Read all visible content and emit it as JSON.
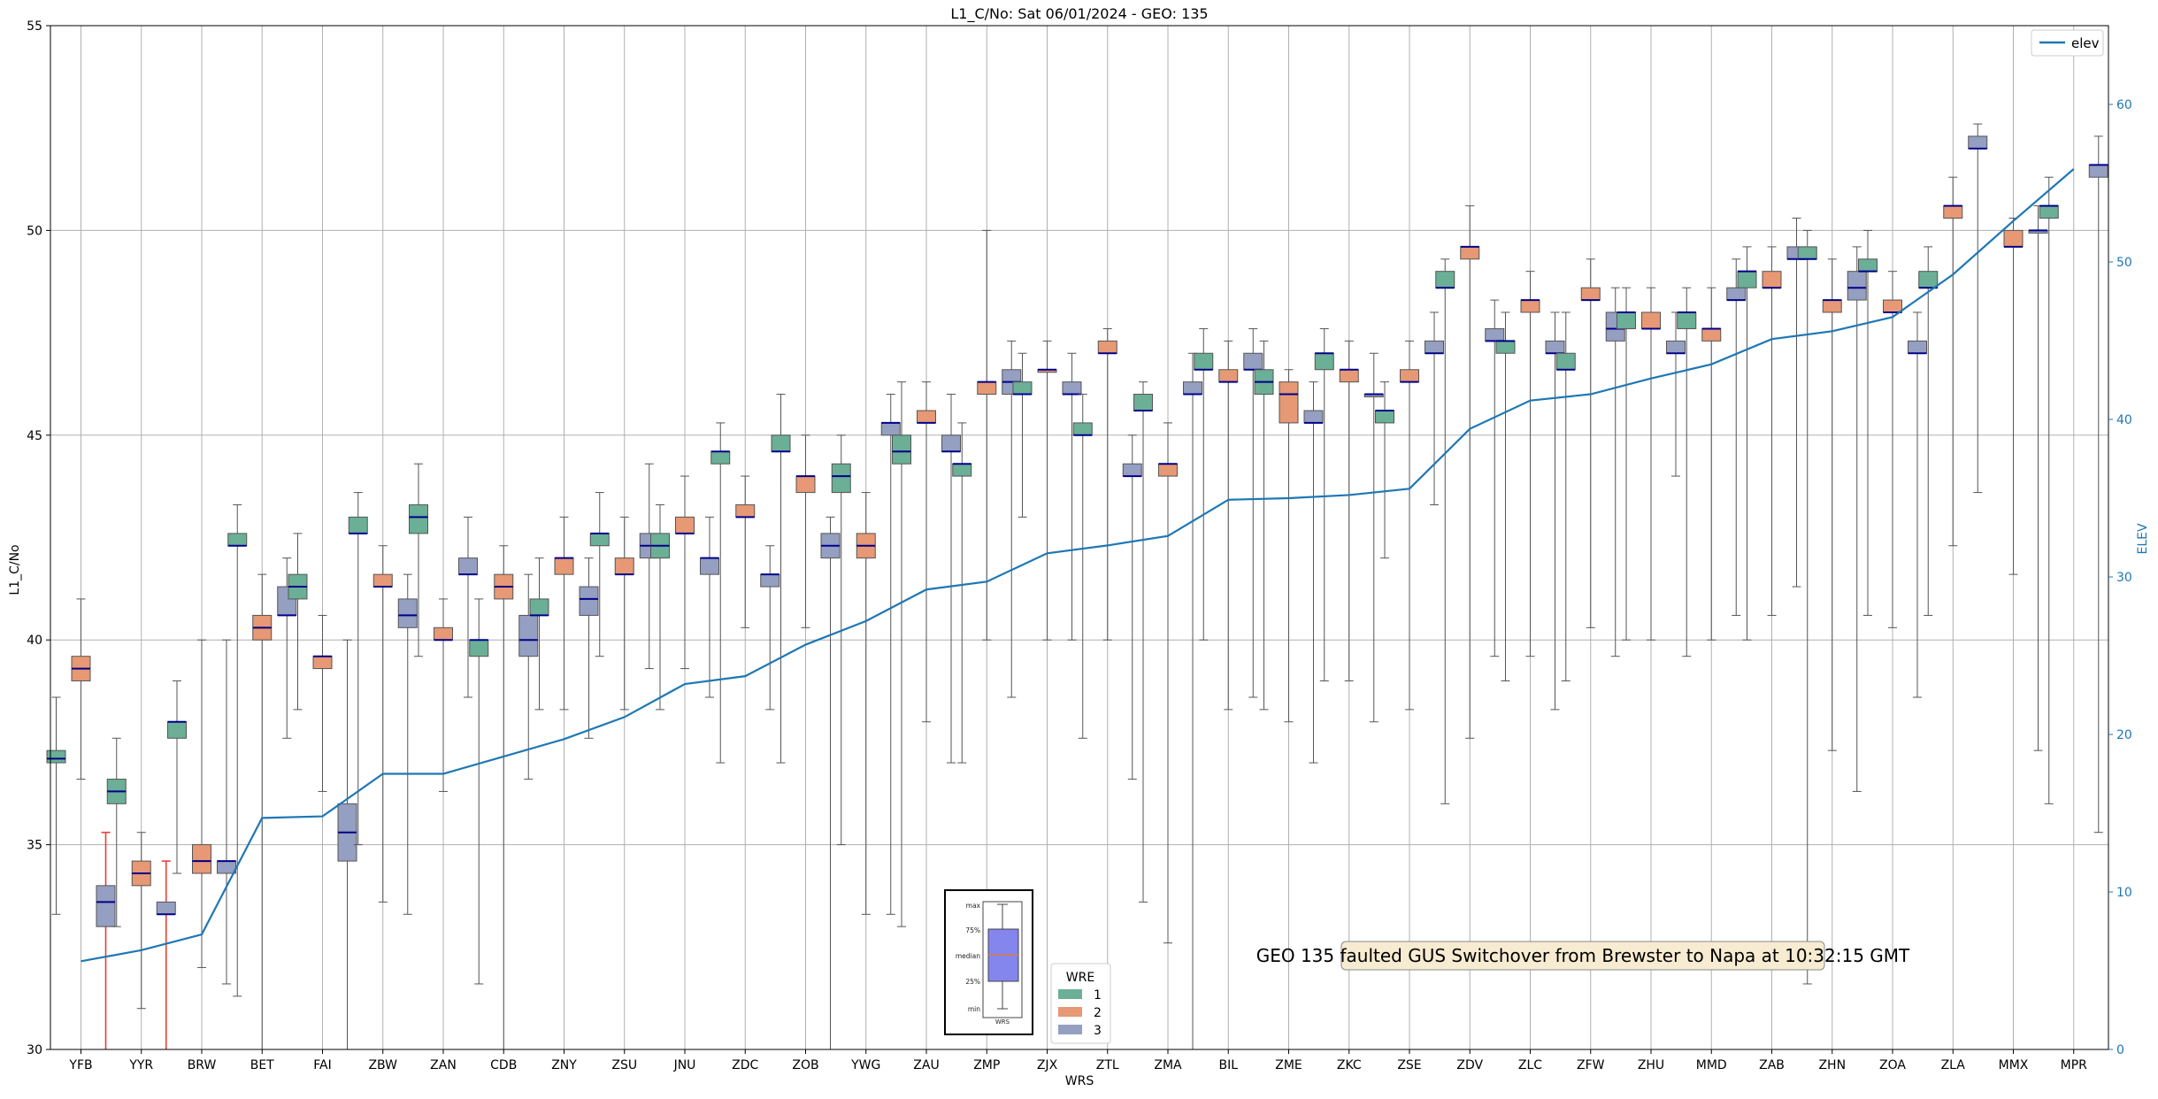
{
  "chart_data": {
    "type": "box",
    "title": "L1_C/No: Sat 06/01/2024 - GEO: 135",
    "xlabel": "WRS",
    "ylabel": "L1_C/No",
    "y2label": "ELEV",
    "ylim": [
      30,
      55
    ],
    "y2lim": [
      0,
      65
    ],
    "yticks": [
      30,
      35,
      40,
      45,
      50,
      55
    ],
    "y2ticks": [
      0,
      10,
      20,
      30,
      40,
      50,
      60
    ],
    "grid": true,
    "categories": [
      "YFB",
      "YYR",
      "BRW",
      "BET",
      "FAI",
      "ZBW",
      "ZAN",
      "CDB",
      "ZNY",
      "ZSU",
      "JNU",
      "ZDC",
      "ZOB",
      "YWG",
      "ZAU",
      "ZMP",
      "ZJX",
      "ZTL",
      "ZMA",
      "BIL",
      "ZME",
      "ZKC",
      "ZSE",
      "ZDV",
      "ZLC",
      "ZFW",
      "ZHU",
      "MMD",
      "ZAB",
      "ZHN",
      "ZOA",
      "ZLA",
      "MMX",
      "MPR"
    ],
    "elev_line": {
      "name": "elev",
      "color": "#1f77b4",
      "values": [
        5.6,
        6.3,
        7.3,
        14.7,
        14.8,
        17.5,
        17.5,
        18.6,
        19.7,
        21.1,
        23.2,
        23.7,
        25.7,
        27.2,
        29.2,
        29.7,
        31.5,
        32.0,
        32.6,
        34.9,
        35.0,
        35.2,
        35.6,
        39.4,
        41.2,
        41.6,
        42.6,
        43.5,
        45.1,
        45.6,
        46.5,
        49.2,
        52.6,
        55.9
      ]
    },
    "legend_wre": {
      "title": "WRE",
      "placement": "bottom-center",
      "entries": [
        {
          "label": "1",
          "color": "#6aaf96"
        },
        {
          "label": "2",
          "color": "#e79874"
        },
        {
          "label": "3",
          "color": "#949fc1"
        }
      ]
    },
    "legend_elev": {
      "label": "elev",
      "placement": "top-right"
    },
    "key_box": {
      "labels": [
        "max",
        "75%",
        "median",
        "25%",
        "min"
      ],
      "xlabel": "WRS"
    },
    "annotation": "GEO 135 faulted GUS Switchover from Brewster to Napa at 10:32:15 GMT",
    "boxes": [
      {
        "wrs": "YFB",
        "wre": 1,
        "min": 33.3,
        "q1": 37.0,
        "median": 37.1,
        "q3": 37.3,
        "max": 38.6
      },
      {
        "wrs": "YFB",
        "wre": 2,
        "min": 36.6,
        "q1": 39.0,
        "median": 39.3,
        "q3": 39.6,
        "max": 41.0
      },
      {
        "wrs": "YFB",
        "wre": 3,
        "min": 30.0,
        "q1": 33.0,
        "median": 33.6,
        "q3": 34.0,
        "max": 35.3,
        "faulted": true
      },
      {
        "wrs": "YYR",
        "wre": 1,
        "min": 33.0,
        "q1": 36.0,
        "median": 36.3,
        "q3": 36.6,
        "max": 37.6
      },
      {
        "wrs": "YYR",
        "wre": 2,
        "min": 31.0,
        "q1": 34.0,
        "median": 34.3,
        "q3": 34.6,
        "max": 35.3
      },
      {
        "wrs": "YYR",
        "wre": 3,
        "min": 30.0,
        "q1": 33.3,
        "median": 33.3,
        "q3": 33.6,
        "max": 34.6,
        "faulted": true
      },
      {
        "wrs": "BRW",
        "wre": 1,
        "min": 34.3,
        "q1": 37.6,
        "median": 38.0,
        "q3": 38.0,
        "max": 39.0
      },
      {
        "wrs": "BRW",
        "wre": 2,
        "min": 32.0,
        "q1": 34.3,
        "median": 34.6,
        "q3": 35.0,
        "max": 40.0
      },
      {
        "wrs": "BRW",
        "wre": 3,
        "min": 31.6,
        "q1": 34.3,
        "median": 34.6,
        "q3": 34.6,
        "max": 40.0
      },
      {
        "wrs": "BET",
        "wre": 1,
        "min": 31.3,
        "q1": 42.3,
        "median": 42.3,
        "q3": 42.6,
        "max": 43.3
      },
      {
        "wrs": "BET",
        "wre": 2,
        "min": 30.0,
        "q1": 40.0,
        "median": 40.3,
        "q3": 40.6,
        "max": 41.6
      },
      {
        "wrs": "BET",
        "wre": 3,
        "min": 37.6,
        "q1": 40.6,
        "median": 40.6,
        "q3": 41.3,
        "max": 42.0
      },
      {
        "wrs": "FAI",
        "wre": 1,
        "min": 38.3,
        "q1": 41.0,
        "median": 41.3,
        "q3": 41.6,
        "max": 42.6
      },
      {
        "wrs": "FAI",
        "wre": 2,
        "min": 36.3,
        "q1": 39.3,
        "median": 39.6,
        "q3": 39.6,
        "max": 40.6
      },
      {
        "wrs": "FAI",
        "wre": 3,
        "min": 30.0,
        "q1": 34.6,
        "median": 35.3,
        "q3": 36.0,
        "max": 40.0
      },
      {
        "wrs": "ZBW",
        "wre": 1,
        "min": 35.0,
        "q1": 42.6,
        "median": 42.6,
        "q3": 43.0,
        "max": 43.6
      },
      {
        "wrs": "ZBW",
        "wre": 2,
        "min": 33.6,
        "q1": 41.3,
        "median": 41.3,
        "q3": 41.6,
        "max": 42.3
      },
      {
        "wrs": "ZBW",
        "wre": 3,
        "min": 33.3,
        "q1": 40.3,
        "median": 40.6,
        "q3": 41.0,
        "max": 41.6
      },
      {
        "wrs": "ZAN",
        "wre": 1,
        "min": 39.6,
        "q1": 42.6,
        "median": 43.0,
        "q3": 43.3,
        "max": 44.3
      },
      {
        "wrs": "ZAN",
        "wre": 2,
        "min": 36.3,
        "q1": 40.0,
        "median": 40.0,
        "q3": 40.3,
        "max": 41.0
      },
      {
        "wrs": "ZAN",
        "wre": 3,
        "min": 38.6,
        "q1": 41.6,
        "median": 41.6,
        "q3": 42.0,
        "max": 43.0
      },
      {
        "wrs": "CDB",
        "wre": 1,
        "min": 31.6,
        "q1": 39.6,
        "median": 40.0,
        "q3": 40.0,
        "max": 41.0
      },
      {
        "wrs": "CDB",
        "wre": 2,
        "min": 30.0,
        "q1": 41.0,
        "median": 41.3,
        "q3": 41.6,
        "max": 42.3
      },
      {
        "wrs": "CDB",
        "wre": 3,
        "min": 36.6,
        "q1": 39.6,
        "median": 40.0,
        "q3": 40.6,
        "max": 41.6
      },
      {
        "wrs": "ZNY",
        "wre": 1,
        "min": 38.3,
        "q1": 40.6,
        "median": 40.6,
        "q3": 41.0,
        "max": 42.0
      },
      {
        "wrs": "ZNY",
        "wre": 2,
        "min": 38.3,
        "q1": 41.6,
        "median": 42.0,
        "q3": 42.0,
        "max": 43.0
      },
      {
        "wrs": "ZNY",
        "wre": 3,
        "min": 37.6,
        "q1": 40.6,
        "median": 41.0,
        "q3": 41.3,
        "max": 42.0
      },
      {
        "wrs": "ZSU",
        "wre": 1,
        "min": 39.6,
        "q1": 42.3,
        "median": 42.6,
        "q3": 42.6,
        "max": 43.6
      },
      {
        "wrs": "ZSU",
        "wre": 2,
        "min": 38.3,
        "q1": 41.6,
        "median": 41.6,
        "q3": 42.0,
        "max": 43.0
      },
      {
        "wrs": "ZSU",
        "wre": 3,
        "min": 39.3,
        "q1": 42.0,
        "median": 42.3,
        "q3": 42.6,
        "max": 44.3
      },
      {
        "wrs": "JNU",
        "wre": 1,
        "min": 38.3,
        "q1": 42.0,
        "median": 42.3,
        "q3": 42.6,
        "max": 43.3
      },
      {
        "wrs": "JNU",
        "wre": 2,
        "min": 39.3,
        "q1": 42.6,
        "median": 42.6,
        "q3": 43.0,
        "max": 44.0
      },
      {
        "wrs": "JNU",
        "wre": 3,
        "min": 38.6,
        "q1": 41.6,
        "median": 42.0,
        "q3": 42.0,
        "max": 43.0
      },
      {
        "wrs": "ZDC",
        "wre": 1,
        "min": 37.0,
        "q1": 44.3,
        "median": 44.6,
        "q3": 44.6,
        "max": 45.3
      },
      {
        "wrs": "ZDC",
        "wre": 2,
        "min": 40.3,
        "q1": 43.0,
        "median": 43.0,
        "q3": 43.3,
        "max": 44.0
      },
      {
        "wrs": "ZDC",
        "wre": 3,
        "min": 38.3,
        "q1": 41.3,
        "median": 41.6,
        "q3": 41.6,
        "max": 42.3
      },
      {
        "wrs": "ZOB",
        "wre": 1,
        "min": 37.0,
        "q1": 44.6,
        "median": 44.6,
        "q3": 45.0,
        "max": 46.0
      },
      {
        "wrs": "ZOB",
        "wre": 2,
        "min": 40.3,
        "q1": 43.6,
        "median": 44.0,
        "q3": 44.0,
        "max": 45.0
      },
      {
        "wrs": "ZOB",
        "wre": 3,
        "min": 30.0,
        "q1": 42.0,
        "median": 42.3,
        "q3": 42.6,
        "max": 43.0
      },
      {
        "wrs": "YWG",
        "wre": 1,
        "min": 35.0,
        "q1": 43.6,
        "median": 44.0,
        "q3": 44.3,
        "max": 45.0
      },
      {
        "wrs": "YWG",
        "wre": 2,
        "min": 33.3,
        "q1": 42.0,
        "median": 42.3,
        "q3": 42.6,
        "max": 43.6
      },
      {
        "wrs": "YWG",
        "wre": 3,
        "min": 33.3,
        "q1": 45.0,
        "median": 45.3,
        "q3": 45.3,
        "max": 46.0
      },
      {
        "wrs": "ZAU",
        "wre": 1,
        "min": 33.0,
        "q1": 44.3,
        "median": 44.6,
        "q3": 45.0,
        "max": 46.3
      },
      {
        "wrs": "ZAU",
        "wre": 2,
        "min": 38.0,
        "q1": 45.3,
        "median": 45.3,
        "q3": 45.6,
        "max": 46.3
      },
      {
        "wrs": "ZAU",
        "wre": 3,
        "min": 37.0,
        "q1": 44.6,
        "median": 44.6,
        "q3": 45.0,
        "max": 46.0
      },
      {
        "wrs": "ZMP",
        "wre": 1,
        "min": 37.0,
        "q1": 44.0,
        "median": 44.3,
        "q3": 44.3,
        "max": 45.3
      },
      {
        "wrs": "ZMP",
        "wre": 2,
        "min": 40.0,
        "q1": 46.0,
        "median": 46.3,
        "q3": 46.3,
        "max": 50.0
      },
      {
        "wrs": "ZMP",
        "wre": 3,
        "min": 38.6,
        "q1": 46.0,
        "median": 46.3,
        "q3": 46.6,
        "max": 47.3
      },
      {
        "wrs": "ZJX",
        "wre": 1,
        "min": 43.0,
        "q1": 46.0,
        "median": 46.0,
        "q3": 46.3,
        "max": 47.0
      },
      {
        "wrs": "ZJX",
        "wre": 2,
        "min": 40.0,
        "q1": 46.6,
        "median": 46.6,
        "q3": 46.6,
        "max": 47.3
      },
      {
        "wrs": "ZJX",
        "wre": 3,
        "min": 40.0,
        "q1": 46.0,
        "median": 46.0,
        "q3": 46.3,
        "max": 47.0
      },
      {
        "wrs": "ZTL",
        "wre": 1,
        "min": 37.6,
        "q1": 45.0,
        "median": 45.0,
        "q3": 45.3,
        "max": 46.0
      },
      {
        "wrs": "ZTL",
        "wre": 2,
        "min": 40.0,
        "q1": 47.0,
        "median": 47.0,
        "q3": 47.3,
        "max": 47.6
      },
      {
        "wrs": "ZTL",
        "wre": 3,
        "min": 36.6,
        "q1": 44.0,
        "median": 44.0,
        "q3": 44.3,
        "max": 45.0
      },
      {
        "wrs": "ZMA",
        "wre": 1,
        "min": 33.6,
        "q1": 45.6,
        "median": 45.6,
        "q3": 46.0,
        "max": 46.3
      },
      {
        "wrs": "ZMA",
        "wre": 2,
        "min": 32.6,
        "q1": 44.0,
        "median": 44.3,
        "q3": 44.3,
        "max": 45.3
      },
      {
        "wrs": "ZMA",
        "wre": 3,
        "min": 30.0,
        "q1": 46.0,
        "median": 46.0,
        "q3": 46.3,
        "max": 47.0
      },
      {
        "wrs": "BIL",
        "wre": 1,
        "min": 40.0,
        "q1": 46.6,
        "median": 46.6,
        "q3": 47.0,
        "max": 47.6
      },
      {
        "wrs": "BIL",
        "wre": 2,
        "min": 38.3,
        "q1": 46.3,
        "median": 46.3,
        "q3": 46.6,
        "max": 47.3
      },
      {
        "wrs": "BIL",
        "wre": 3,
        "min": 38.6,
        "q1": 46.6,
        "median": 46.6,
        "q3": 47.0,
        "max": 47.6
      },
      {
        "wrs": "ZME",
        "wre": 1,
        "min": 38.3,
        "q1": 46.0,
        "median": 46.3,
        "q3": 46.6,
        "max": 47.3
      },
      {
        "wrs": "ZME",
        "wre": 2,
        "min": 38.0,
        "q1": 45.3,
        "median": 46.0,
        "q3": 46.3,
        "max": 46.6
      },
      {
        "wrs": "ZME",
        "wre": 3,
        "min": 37.0,
        "q1": 45.3,
        "median": 45.3,
        "q3": 45.6,
        "max": 46.3
      },
      {
        "wrs": "ZKC",
        "wre": 1,
        "min": 39.0,
        "q1": 46.6,
        "median": 47.0,
        "q3": 47.0,
        "max": 47.6
      },
      {
        "wrs": "ZKC",
        "wre": 2,
        "min": 39.0,
        "q1": 46.3,
        "median": 46.6,
        "q3": 46.6,
        "max": 47.3
      },
      {
        "wrs": "ZKC",
        "wre": 3,
        "min": 38.0,
        "q1": 46.0,
        "median": 46.0,
        "q3": 46.0,
        "max": 47.0
      },
      {
        "wrs": "ZSE",
        "wre": 1,
        "min": 42.0,
        "q1": 45.3,
        "median": 45.6,
        "q3": 45.6,
        "max": 46.3
      },
      {
        "wrs": "ZSE",
        "wre": 2,
        "min": 38.3,
        "q1": 46.3,
        "median": 46.3,
        "q3": 46.6,
        "max": 47.3
      },
      {
        "wrs": "ZSE",
        "wre": 3,
        "min": 43.3,
        "q1": 47.0,
        "median": 47.0,
        "q3": 47.3,
        "max": 48.0
      },
      {
        "wrs": "ZDV",
        "wre": 1,
        "min": 36.0,
        "q1": 48.6,
        "median": 48.6,
        "q3": 49.0,
        "max": 49.3
      },
      {
        "wrs": "ZDV",
        "wre": 2,
        "min": 37.6,
        "q1": 49.3,
        "median": 49.6,
        "q3": 49.6,
        "max": 50.6
      },
      {
        "wrs": "ZDV",
        "wre": 3,
        "min": 39.6,
        "q1": 47.3,
        "median": 47.3,
        "q3": 47.6,
        "max": 48.3
      },
      {
        "wrs": "ZLC",
        "wre": 1,
        "min": 39.0,
        "q1": 47.0,
        "median": 47.3,
        "q3": 47.3,
        "max": 48.0
      },
      {
        "wrs": "ZLC",
        "wre": 2,
        "min": 39.6,
        "q1": 48.0,
        "median": 48.3,
        "q3": 48.3,
        "max": 49.0
      },
      {
        "wrs": "ZLC",
        "wre": 3,
        "min": 38.3,
        "q1": 47.0,
        "median": 47.0,
        "q3": 47.3,
        "max": 48.0
      },
      {
        "wrs": "ZFW",
        "wre": 1,
        "min": 39.0,
        "q1": 46.6,
        "median": 46.6,
        "q3": 47.0,
        "max": 48.0
      },
      {
        "wrs": "ZFW",
        "wre": 2,
        "min": 40.3,
        "q1": 48.3,
        "median": 48.3,
        "q3": 48.6,
        "max": 49.3
      },
      {
        "wrs": "ZFW",
        "wre": 3,
        "min": 39.6,
        "q1": 47.3,
        "median": 47.6,
        "q3": 48.0,
        "max": 48.6
      },
      {
        "wrs": "ZHU",
        "wre": 1,
        "min": 40.0,
        "q1": 47.6,
        "median": 48.0,
        "q3": 48.0,
        "max": 48.6
      },
      {
        "wrs": "ZHU",
        "wre": 2,
        "min": 40.0,
        "q1": 47.6,
        "median": 47.6,
        "q3": 48.0,
        "max": 48.6
      },
      {
        "wrs": "ZHU",
        "wre": 3,
        "min": 44.0,
        "q1": 47.0,
        "median": 47.0,
        "q3": 47.3,
        "max": 48.0
      },
      {
        "wrs": "MMD",
        "wre": 1,
        "min": 39.6,
        "q1": 47.6,
        "median": 48.0,
        "q3": 48.0,
        "max": 48.6
      },
      {
        "wrs": "MMD",
        "wre": 2,
        "min": 40.0,
        "q1": 47.3,
        "median": 47.6,
        "q3": 47.6,
        "max": 48.6
      },
      {
        "wrs": "MMD",
        "wre": 3,
        "min": 40.6,
        "q1": 48.3,
        "median": 48.3,
        "q3": 48.6,
        "max": 49.3
      },
      {
        "wrs": "ZAB",
        "wre": 1,
        "min": 40.0,
        "q1": 48.6,
        "median": 49.0,
        "q3": 49.0,
        "max": 49.6
      },
      {
        "wrs": "ZAB",
        "wre": 2,
        "min": 40.6,
        "q1": 48.6,
        "median": 48.6,
        "q3": 49.0,
        "max": 49.6
      },
      {
        "wrs": "ZAB",
        "wre": 3,
        "min": 41.3,
        "q1": 49.3,
        "median": 49.3,
        "q3": 49.6,
        "max": 50.3
      },
      {
        "wrs": "ZHN",
        "wre": 1,
        "min": 31.6,
        "q1": 49.3,
        "median": 49.3,
        "q3": 49.6,
        "max": 50.0
      },
      {
        "wrs": "ZHN",
        "wre": 2,
        "min": 37.3,
        "q1": 48.0,
        "median": 48.3,
        "q3": 48.3,
        "max": 49.3
      },
      {
        "wrs": "ZHN",
        "wre": 3,
        "min": 36.3,
        "q1": 48.3,
        "median": 48.6,
        "q3": 49.0,
        "max": 49.6
      },
      {
        "wrs": "ZOA",
        "wre": 1,
        "min": 40.6,
        "q1": 49.0,
        "median": 49.0,
        "q3": 49.3,
        "max": 50.0
      },
      {
        "wrs": "ZOA",
        "wre": 2,
        "min": 40.3,
        "q1": 48.0,
        "median": 48.0,
        "q3": 48.3,
        "max": 49.0
      },
      {
        "wrs": "ZOA",
        "wre": 3,
        "min": 38.6,
        "q1": 47.0,
        "median": 47.0,
        "q3": 47.3,
        "max": 48.0
      },
      {
        "wrs": "ZLA",
        "wre": 1,
        "min": 40.6,
        "q1": 48.6,
        "median": 48.6,
        "q3": 49.0,
        "max": 49.6
      },
      {
        "wrs": "ZLA",
        "wre": 2,
        "min": 42.3,
        "q1": 50.3,
        "median": 50.6,
        "q3": 50.6,
        "max": 51.3
      },
      {
        "wrs": "ZLA",
        "wre": 3,
        "min": 43.6,
        "q1": 52.0,
        "median": 52.0,
        "q3": 52.3,
        "max": 52.6
      },
      {
        "wrs": "MMX",
        "wre": 3,
        "min": 37.3,
        "q1": 50.0,
        "median": 50.0,
        "q3": 50.0,
        "max": 50.6
      },
      {
        "wrs": "MMX",
        "wre": 2,
        "min": 41.6,
        "q1": 49.6,
        "median": 49.6,
        "q3": 50.0,
        "max": 50.3
      },
      {
        "wrs": "MPR",
        "wre": 1,
        "min": 36.0,
        "q1": 50.3,
        "median": 50.6,
        "q3": 50.6,
        "max": 51.3
      },
      {
        "wrs": "MPR",
        "wre": 3,
        "min": 35.3,
        "q1": 51.3,
        "median": 51.6,
        "q3": 51.6,
        "max": 52.3
      }
    ]
  }
}
